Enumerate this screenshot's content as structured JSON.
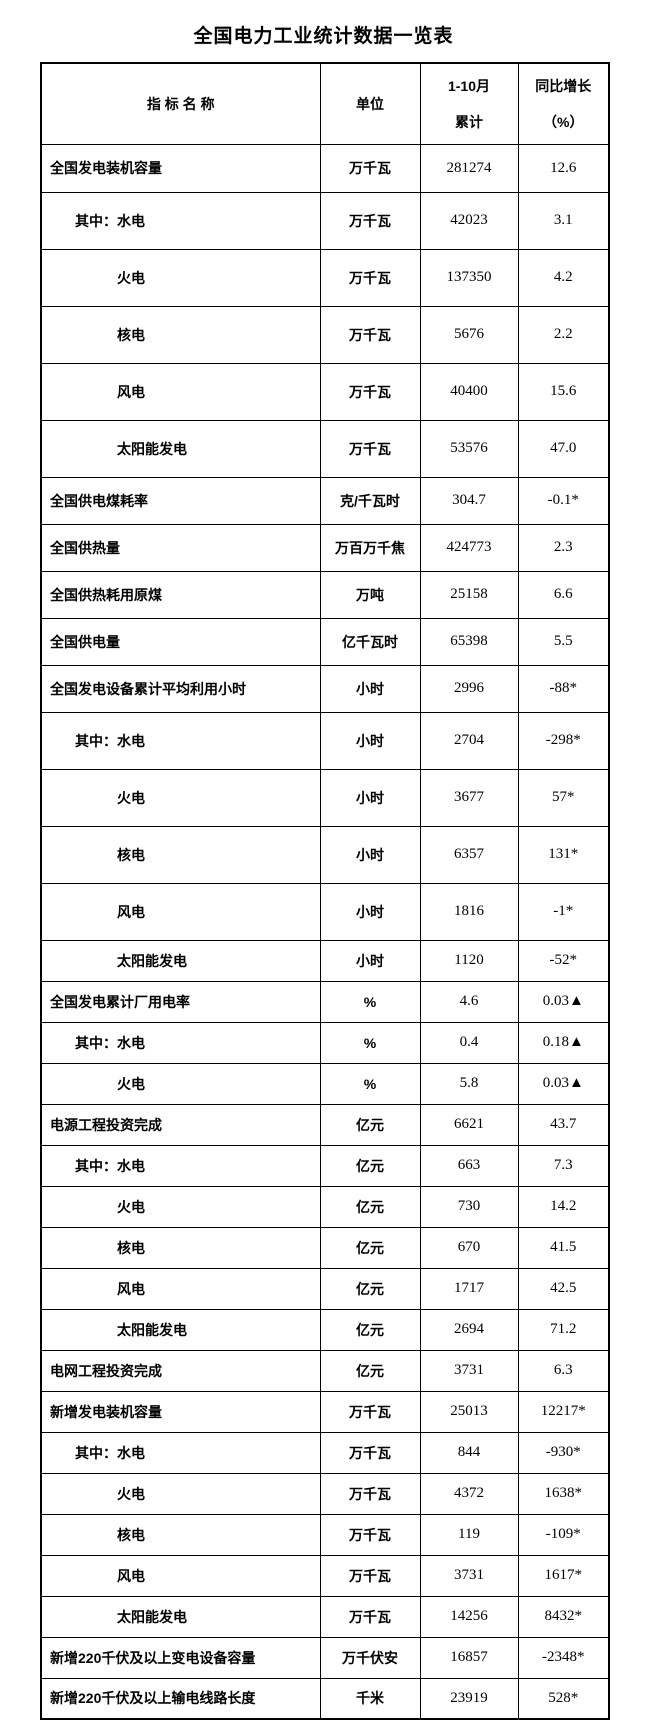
{
  "title": "全国电力工业统计数据一览表",
  "colors": {
    "background": "#ffffff",
    "text": "#000000",
    "border": "#000000"
  },
  "table": {
    "headers": {
      "indicator": "指 标 名 称",
      "unit": "单位",
      "period_line1": "1-10月",
      "period_line2": "累计",
      "growth_line1": "同比增长",
      "growth_line2": "（%）"
    },
    "rows": [
      {
        "indicator": "全国发电装机容量",
        "indent": 0,
        "unit": "万千瓦",
        "value": "281274",
        "growth": "12.6"
      },
      {
        "indicator": "其中：水电",
        "indent": 1,
        "unit": "万千瓦",
        "value": "42023",
        "growth": "3.1"
      },
      {
        "indicator": "火电",
        "indent": 2,
        "unit": "万千瓦",
        "value": "137350",
        "growth": "4.2"
      },
      {
        "indicator": "核电",
        "indent": 2,
        "unit": "万千瓦",
        "value": "5676",
        "growth": "2.2"
      },
      {
        "indicator": "风电",
        "indent": 2,
        "unit": "万千瓦",
        "value": "40400",
        "growth": "15.6"
      },
      {
        "indicator": "太阳能发电",
        "indent": 2,
        "unit": "万千瓦",
        "value": "53576",
        "growth": "47.0"
      },
      {
        "indicator": "全国供电煤耗率",
        "indent": 0,
        "unit": "克/千瓦时",
        "value": "304.7",
        "growth": "-0.1*"
      },
      {
        "indicator": "全国供热量",
        "indent": 0,
        "unit": "万百万千焦",
        "value": "424773",
        "growth": "2.3"
      },
      {
        "indicator": "全国供热耗用原煤",
        "indent": 0,
        "unit": "万吨",
        "value": "25158",
        "growth": "6.6"
      },
      {
        "indicator": "全国供电量",
        "indent": 0,
        "unit": "亿千瓦时",
        "value": "65398",
        "growth": "5.5"
      },
      {
        "indicator": "全国发电设备累计平均利用小时",
        "indent": 0,
        "unit": "小时",
        "value": "2996",
        "growth": "-88*"
      },
      {
        "indicator": "其中：水电",
        "indent": 1,
        "unit": "小时",
        "value": "2704",
        "growth": "-298*"
      },
      {
        "indicator": "火电",
        "indent": 2,
        "unit": "小时",
        "value": "3677",
        "growth": "57*"
      },
      {
        "indicator": "核电",
        "indent": 2,
        "unit": "小时",
        "value": "6357",
        "growth": "131*"
      },
      {
        "indicator": "风电",
        "indent": 2,
        "unit": "小时",
        "value": "1816",
        "growth": "-1*"
      },
      {
        "indicator": "太阳能发电",
        "indent": 2,
        "unit": "小时",
        "value": "1120",
        "growth": "-52*"
      },
      {
        "indicator": "全国发电累计厂用电率",
        "indent": 0,
        "unit": "%",
        "value": "4.6",
        "growth": "0.03▲"
      },
      {
        "indicator": "其中：水电",
        "indent": 1,
        "unit": "%",
        "value": "0.4",
        "growth": "0.18▲"
      },
      {
        "indicator": "火电",
        "indent": 2,
        "unit": "%",
        "value": "5.8",
        "growth": "0.03▲"
      },
      {
        "indicator": "电源工程投资完成",
        "indent": 0,
        "unit": "亿元",
        "value": "6621",
        "growth": "43.7"
      },
      {
        "indicator": "其中：水电",
        "indent": 1,
        "unit": "亿元",
        "value": "663",
        "growth": "7.3"
      },
      {
        "indicator": "火电",
        "indent": 2,
        "unit": "亿元",
        "value": "730",
        "growth": "14.2"
      },
      {
        "indicator": "核电",
        "indent": 2,
        "unit": "亿元",
        "value": "670",
        "growth": "41.5"
      },
      {
        "indicator": "风电",
        "indent": 2,
        "unit": "亿元",
        "value": "1717",
        "growth": "42.5"
      },
      {
        "indicator": "太阳能发电",
        "indent": 2,
        "unit": "亿元",
        "value": "2694",
        "growth": "71.2"
      },
      {
        "indicator": "电网工程投资完成",
        "indent": 0,
        "unit": "亿元",
        "value": "3731",
        "growth": "6.3"
      },
      {
        "indicator": "新增发电装机容量",
        "indent": 0,
        "unit": "万千瓦",
        "value": "25013",
        "growth": "12217*"
      },
      {
        "indicator": "其中：水电",
        "indent": 1,
        "unit": "万千瓦",
        "value": "844",
        "growth": "-930*"
      },
      {
        "indicator": "火电",
        "indent": 2,
        "unit": "万千瓦",
        "value": "4372",
        "growth": "1638*"
      },
      {
        "indicator": "核电",
        "indent": 2,
        "unit": "万千瓦",
        "value": "119",
        "growth": "-109*"
      },
      {
        "indicator": "风电",
        "indent": 2,
        "unit": "万千瓦",
        "value": "3731",
        "growth": "1617*"
      },
      {
        "indicator": "太阳能发电",
        "indent": 2,
        "unit": "万千瓦",
        "value": "14256",
        "growth": "8432*"
      },
      {
        "indicator": "新增220千伏及以上变电设备容量",
        "indent": 0,
        "unit": "万千伏安",
        "value": "16857",
        "growth": "-2348*"
      },
      {
        "indicator": "新增220千伏及以上输电线路长度",
        "indent": 0,
        "unit": "千米",
        "value": "23919",
        "growth": "528*"
      }
    ]
  }
}
